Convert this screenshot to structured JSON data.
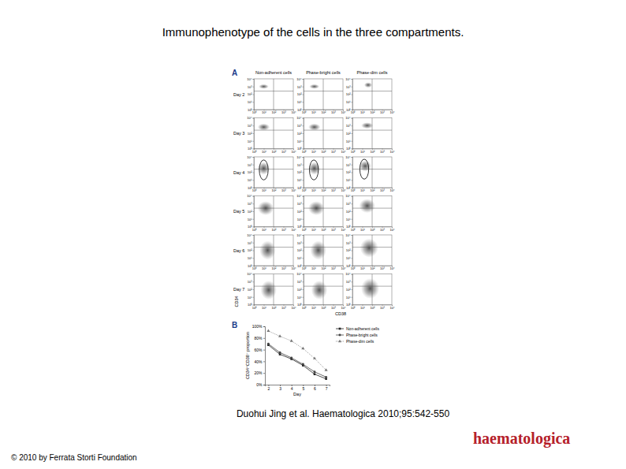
{
  "title": "Immunophenotype of the cells in the three compartments.",
  "citation": "Duohui Jing et al. Haematologica 2010;95:542-550",
  "copyright": "© 2010 by Ferrata Storti Foundation",
  "logo": "haematologica",
  "chart_data": [
    {
      "type": "density",
      "panel": "A",
      "columns": [
        "Non-adherent cells",
        "Phase-bright cells",
        "Phase-dim cells"
      ],
      "x_label": "CD38",
      "y_label": "CD34",
      "xlim": [
        0,
        4
      ],
      "ylim": [
        0,
        4
      ],
      "xticks": [
        {
          "value": 0,
          "label": "10⁰"
        },
        {
          "value": 1,
          "label": "10¹"
        },
        {
          "value": 2,
          "label": "10²"
        },
        {
          "value": 3,
          "label": "10³"
        },
        {
          "value": 4,
          "label": "10⁴"
        }
      ],
      "yticks": [
        {
          "value": 0,
          "label": "10⁰"
        },
        {
          "value": 1,
          "label": "10¹"
        },
        {
          "value": 2,
          "label": "10²"
        },
        {
          "value": 3,
          "label": "10³"
        },
        {
          "value": 4,
          "label": "10⁴"
        }
      ],
      "quadrant": {
        "x": 2.0,
        "y": 2.4
      },
      "rows": [
        {
          "label": "Day 2",
          "clouds": [
            {
              "x": 1.0,
              "y": 3.0,
              "sx": 0.5,
              "sy": 0.3
            },
            {
              "x": 1.1,
              "y": 3.0,
              "sx": 0.5,
              "sy": 0.3
            },
            {
              "x": 1.6,
              "y": 3.2,
              "sx": 0.4,
              "sy": 0.35
            }
          ]
        },
        {
          "label": "Day 3",
          "clouds": [
            {
              "x": 1.0,
              "y": 2.8,
              "sx": 0.6,
              "sy": 0.45
            },
            {
              "x": 1.1,
              "y": 2.8,
              "sx": 0.6,
              "sy": 0.45
            },
            {
              "x": 1.5,
              "y": 3.0,
              "sx": 0.6,
              "sy": 0.4
            }
          ]
        },
        {
          "label": "Day 4",
          "clouds": [
            {
              "x": 1.0,
              "y": 2.5,
              "sx": 0.6,
              "sy": 0.8
            },
            {
              "x": 1.1,
              "y": 2.5,
              "sx": 0.6,
              "sy": 0.8
            },
            {
              "x": 1.3,
              "y": 2.8,
              "sx": 0.6,
              "sy": 0.7
            }
          ],
          "gates": [
            {
              "x": 1.0,
              "y": 2.3,
              "sx": 0.45,
              "sy": 1.3
            },
            {
              "x": 1.05,
              "y": 2.3,
              "sx": 0.45,
              "sy": 1.3
            },
            {
              "x": 1.2,
              "y": 2.4,
              "sx": 0.45,
              "sy": 1.3
            }
          ]
        },
        {
          "label": "Day 5",
          "clouds": [
            {
              "x": 1.2,
              "y": 2.4,
              "sx": 0.8,
              "sy": 0.9
            },
            {
              "x": 1.3,
              "y": 2.4,
              "sx": 0.8,
              "sy": 0.9
            },
            {
              "x": 1.5,
              "y": 2.7,
              "sx": 0.8,
              "sy": 0.9
            }
          ]
        },
        {
          "label": "Day 6",
          "clouds": [
            {
              "x": 1.4,
              "y": 2.0,
              "sx": 0.8,
              "sy": 1.2
            },
            {
              "x": 1.5,
              "y": 2.0,
              "sx": 0.8,
              "sy": 1.2
            },
            {
              "x": 1.7,
              "y": 2.3,
              "sx": 0.9,
              "sy": 1.2
            }
          ]
        },
        {
          "label": "Day 7",
          "clouds": [
            {
              "x": 1.5,
              "y": 1.9,
              "sx": 0.8,
              "sy": 1.2
            },
            {
              "x": 1.6,
              "y": 1.9,
              "sx": 0.8,
              "sy": 1.2
            },
            {
              "x": 1.8,
              "y": 2.1,
              "sx": 0.9,
              "sy": 1.3
            }
          ]
        }
      ]
    },
    {
      "type": "line",
      "panel": "B",
      "x_label": "Day",
      "y_label": "CD34⁺CD38⁻ proportion",
      "x": [
        2,
        3,
        4,
        5,
        6,
        7
      ],
      "xlim": [
        1.7,
        7.3
      ],
      "xticks": [
        2,
        3,
        4,
        5,
        6,
        7
      ],
      "ylim": [
        0,
        100
      ],
      "yticks": [
        {
          "value": 0,
          "label": "0%"
        },
        {
          "value": 20,
          "label": "20%"
        },
        {
          "value": 40,
          "label": "40%"
        },
        {
          "value": 60,
          "label": "60%"
        },
        {
          "value": 80,
          "label": "80%"
        },
        {
          "value": 100,
          "label": "100%"
        }
      ],
      "legend": "right",
      "series": [
        {
          "name": "Non-adherent cells",
          "color": "#222222",
          "marker": "square",
          "line_style": "solid",
          "values": [
            68,
            52,
            44,
            33,
            18,
            10
          ]
        },
        {
          "name": "Phase-bright cells",
          "color": "#444444",
          "marker": "circle",
          "line_style": "solid",
          "values": [
            70,
            55,
            46,
            35,
            22,
            13
          ]
        },
        {
          "name": "Phase-dim cells",
          "color": "#777777",
          "marker": "triangle",
          "line_style": "dotted",
          "values": [
            92,
            83,
            75,
            62,
            45,
            25
          ]
        }
      ]
    }
  ]
}
